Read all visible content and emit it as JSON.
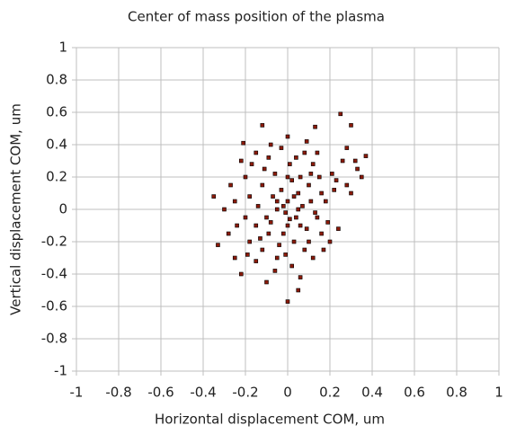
{
  "chart_data": {
    "type": "scatter",
    "title": "Center of mass position of the plasma",
    "x_label": "Horizontal displacement COM, um",
    "y_label": "Vertical displacement COM, um",
    "xlim": [
      -1,
      1
    ],
    "ylim": [
      -1,
      1
    ],
    "xticks": [
      -1,
      -0.8,
      -0.6,
      -0.4,
      -0.2,
      0,
      0.2,
      0.4,
      0.6,
      0.8,
      1
    ],
    "yticks": [
      -1,
      -0.8,
      -0.6,
      -0.4,
      -0.2,
      0,
      0.2,
      0.4,
      0.6,
      0.8,
      1
    ],
    "grid": true,
    "color": "#8b1a0a",
    "x": [
      0.25,
      0.3,
      0.37,
      -0.35,
      -0.33,
      0,
      0.13,
      -0.12,
      -0.21,
      0.05,
      -0.1,
      0.33,
      0.35,
      0.28,
      0.22,
      0.3,
      0.26,
      0.18,
      0.24,
      0.2,
      -0.22,
      -0.25,
      -0.28,
      -0.3,
      -0.27,
      -0.22,
      -0.15,
      -0.08,
      0,
      0.08,
      0.12,
      0.15,
      0.1,
      0.05,
      0,
      -0.05,
      -0.1,
      -0.15,
      -0.02,
      0.03,
      0.08,
      0.12,
      0.02,
      -0.05,
      -0.12,
      -0.18,
      -0.2,
      -0.18,
      -0.12,
      -0.06,
      0.01,
      0.06,
      0.11,
      0.14,
      0.09,
      0.04,
      -0.01,
      -0.07,
      -0.03,
      0.02,
      0.07,
      -0.09,
      -0.04,
      0,
      0.05,
      -0.14,
      -0.11,
      0.04,
      0.16,
      0.19,
      0.16,
      0.1,
      -0.06,
      -0.15,
      -0.24,
      -0.25,
      -0.2,
      0.09,
      -0.03,
      0.14,
      0.06,
      -0.01,
      0.13,
      0.03,
      -0.08,
      -0.02,
      0.01,
      -0.05,
      0.06,
      -0.13,
      0.21,
      0.23,
      0.28,
      0.32,
      -0.17,
      -0.19,
      0.17,
      0.11,
      -0.09,
      0
    ],
    "y": [
      0.59,
      0.52,
      0.33,
      0.08,
      -0.22,
      -0.57,
      0.51,
      0.52,
      0.41,
      -0.5,
      -0.45,
      0.25,
      0.2,
      0.38,
      0.12,
      0.1,
      0.3,
      0.05,
      -0.12,
      -0.2,
      -0.4,
      -0.3,
      -0.15,
      0,
      0.15,
      0.3,
      0.35,
      0.4,
      0.45,
      0.35,
      0.28,
      0.2,
      0.15,
      0.1,
      0.05,
      0,
      -0.05,
      -0.1,
      -0.15,
      -0.2,
      -0.25,
      -0.3,
      -0.35,
      -0.3,
      -0.25,
      -0.2,
      -0.05,
      0.08,
      0.15,
      0.22,
      0.28,
      0.2,
      0.05,
      -0.05,
      -0.12,
      -0.05,
      -0.02,
      0.08,
      0.12,
      0.18,
      0.02,
      -0.15,
      -0.22,
      -0.1,
      0,
      0.02,
      0.25,
      0.32,
      0.1,
      -0.08,
      -0.15,
      -0.2,
      -0.38,
      -0.32,
      -0.1,
      0.05,
      0.2,
      0.42,
      0.38,
      0.35,
      -0.42,
      -0.28,
      -0.02,
      0.08,
      -0.08,
      0.02,
      -0.06,
      0.05,
      -0.1,
      -0.18,
      0.22,
      0.18,
      0.15,
      0.3,
      0.28,
      -0.28,
      -0.25,
      0.22,
      0.32,
      0.2
    ]
  }
}
